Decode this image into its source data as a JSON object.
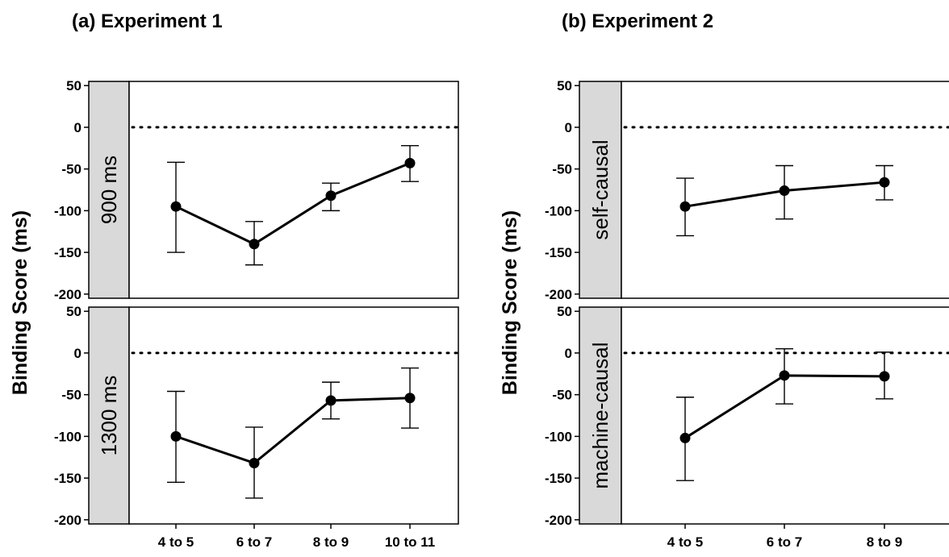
{
  "chart_data": [
    {
      "type": "line",
      "title": "(a) Experiment 1",
      "ylabel": "Binding Score (ms)",
      "xlabel": "",
      "categories": [
        "4 to 5",
        "6 to 7",
        "8 to 9",
        "10 to 11"
      ],
      "ylim": [
        -205,
        55
      ],
      "yticks": [
        50,
        0,
        -50,
        -100,
        -150,
        -200
      ],
      "reference_line": 0,
      "facets": [
        {
          "strip": "900 ms",
          "values": [
            -95,
            -140,
            -82,
            -43
          ],
          "error_low": [
            -150,
            -165,
            -100,
            -65
          ],
          "error_high": [
            -42,
            -113,
            -67,
            -22
          ]
        },
        {
          "strip": "1300 ms",
          "values": [
            -100,
            -132,
            -57,
            -54
          ],
          "error_low": [
            -155,
            -174,
            -79,
            -90
          ],
          "error_high": [
            -46,
            -89,
            -35,
            -18
          ]
        }
      ]
    },
    {
      "type": "line",
      "title": "(b) Experiment 2",
      "ylabel": "Binding Score (ms)",
      "xlabel": "",
      "categories": [
        "4 to 5",
        "6 to 7",
        "8 to 9"
      ],
      "ylim": [
        -205,
        55
      ],
      "yticks": [
        50,
        0,
        -50,
        -100,
        -150,
        -200
      ],
      "reference_line": 0,
      "facets": [
        {
          "strip": "self-causal",
          "values": [
            -95,
            -76,
            -66
          ],
          "error_low": [
            -130,
            -110,
            -87
          ],
          "error_high": [
            -61,
            -46,
            -46
          ]
        },
        {
          "strip": "machine-causal",
          "values": [
            -102,
            -27,
            -28
          ],
          "error_low": [
            -153,
            -61,
            -55
          ],
          "error_high": [
            -53,
            5,
            1
          ]
        }
      ]
    }
  ]
}
